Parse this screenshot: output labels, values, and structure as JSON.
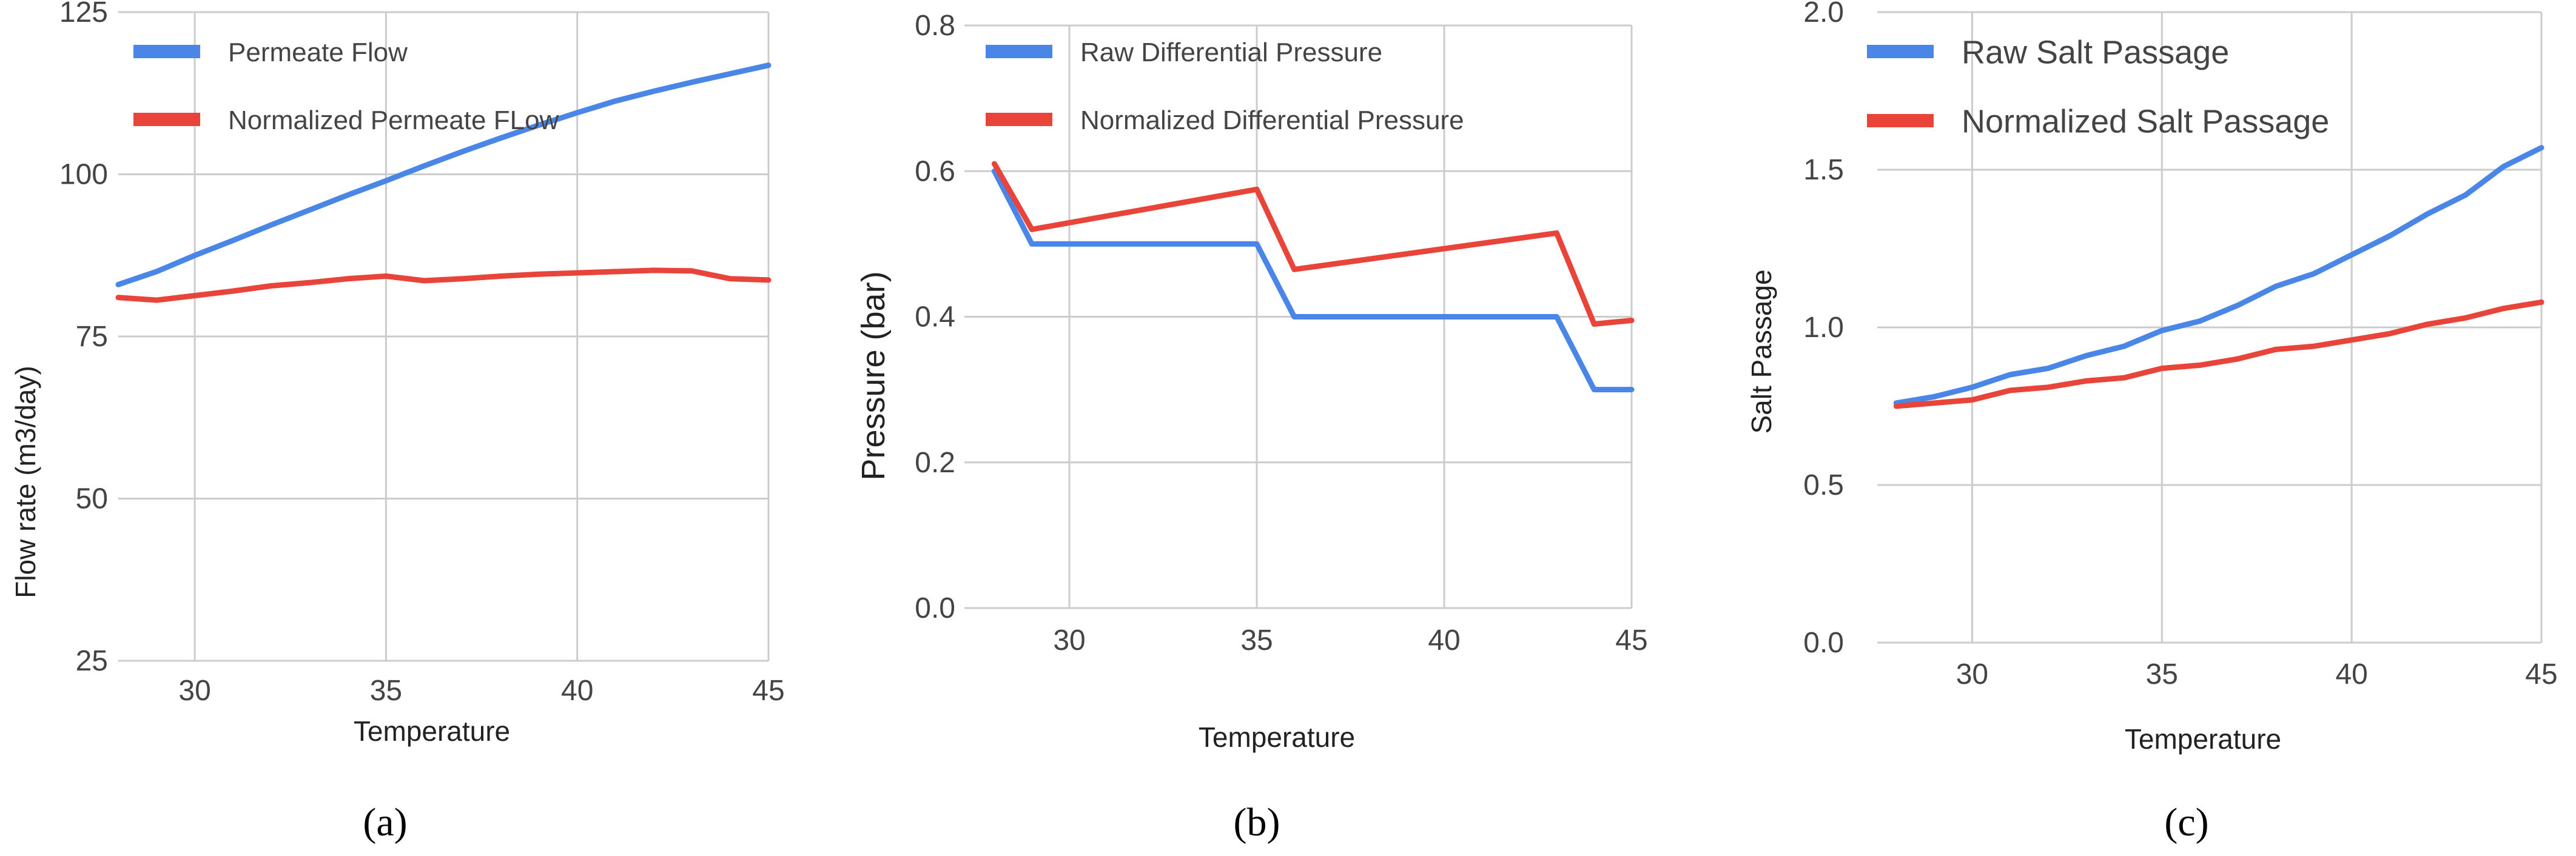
{
  "chart_data": [
    {
      "type": "line",
      "panel_label": "(a)",
      "xlabel": "Temperature",
      "ylabel": "Flow rate (m3/day)",
      "xlim": [
        28,
        45
      ],
      "ylim": [
        25,
        125
      ],
      "xticks": [
        30,
        35,
        40,
        45
      ],
      "yticks": [
        25,
        50,
        75,
        100,
        125
      ],
      "ytick_labels": [
        "25",
        "50",
        "75",
        "100",
        "125"
      ],
      "grid": true,
      "legend_position": "top-left",
      "series": [
        {
          "name": "Permeate Flow",
          "color": "#4a86e8",
          "x": [
            28,
            29,
            30,
            31,
            32,
            33,
            34,
            35,
            36,
            37,
            38,
            39,
            40,
            41,
            42,
            43,
            44,
            45
          ],
          "y": [
            83,
            85,
            87.5,
            89.8,
            92.2,
            94.5,
            96.8,
            99,
            101.3,
            103.5,
            105.6,
            107.6,
            109.5,
            111.3,
            112.8,
            114.2,
            115.5,
            116.8
          ]
        },
        {
          "name": "Normalized Permeate FLow",
          "color": "#e8443a",
          "x": [
            28,
            29,
            30,
            31,
            32,
            33,
            34,
            35,
            36,
            37,
            38,
            39,
            40,
            41,
            42,
            43,
            44,
            45
          ],
          "y": [
            81,
            80.6,
            81.3,
            82,
            82.8,
            83.3,
            83.9,
            84.3,
            83.6,
            83.9,
            84.3,
            84.6,
            84.8,
            85,
            85.2,
            85.1,
            83.9,
            83.7
          ]
        }
      ]
    },
    {
      "type": "line",
      "panel_label": "(b)",
      "xlabel": "Temperature",
      "ylabel": "Pressure (bar)",
      "xlim": [
        27.2,
        45
      ],
      "ylim": [
        0,
        0.8
      ],
      "xticks": [
        30,
        35,
        40,
        45
      ],
      "yticks": [
        0,
        0.2,
        0.4,
        0.6,
        0.8
      ],
      "ytick_labels": [
        "0.0",
        "0.2",
        "0.4",
        "0.6",
        "0.8"
      ],
      "grid": true,
      "legend_position": "top-left",
      "series": [
        {
          "name": "Raw Differential Pressure",
          "color": "#4a86e8",
          "x": [
            28,
            29,
            35,
            36,
            43,
            44,
            45
          ],
          "y": [
            0.6,
            0.5,
            0.5,
            0.4,
            0.4,
            0.3,
            0.3
          ]
        },
        {
          "name": "Normalized Differential Pressure",
          "color": "#e8443a",
          "x": [
            28,
            29,
            35,
            36,
            43,
            44,
            45
          ],
          "y": [
            0.61,
            0.52,
            0.575,
            0.465,
            0.515,
            0.39,
            0.395
          ]
        }
      ]
    },
    {
      "type": "line",
      "panel_label": "(c)",
      "xlabel": "Temperature",
      "ylabel": "Salt Passage",
      "xlim": [
        27.5,
        45
      ],
      "ylim": [
        0,
        2.0
      ],
      "xticks": [
        30,
        35,
        40,
        45
      ],
      "yticks": [
        0,
        0.5,
        1.0,
        1.5,
        2.0
      ],
      "ytick_labels": [
        "0.0",
        "0.5",
        "1.0",
        "1.5",
        "2.0"
      ],
      "grid": true,
      "legend_position": "top-left",
      "series": [
        {
          "name": "Raw Salt Passage",
          "color": "#4a86e8",
          "x": [
            28,
            29,
            30,
            31,
            32,
            33,
            34,
            35,
            36,
            37,
            38,
            39,
            40,
            41,
            42,
            43,
            44,
            45
          ],
          "y": [
            0.76,
            0.78,
            0.81,
            0.85,
            0.87,
            0.91,
            0.94,
            0.99,
            1.02,
            1.07,
            1.13,
            1.17,
            1.23,
            1.29,
            1.36,
            1.42,
            1.51,
            1.57
          ]
        },
        {
          "name": "Normalized Salt Passage",
          "color": "#e8443a",
          "x": [
            28,
            29,
            30,
            31,
            32,
            33,
            34,
            35,
            36,
            37,
            38,
            39,
            40,
            41,
            42,
            43,
            44,
            45
          ],
          "y": [
            0.75,
            0.76,
            0.77,
            0.8,
            0.81,
            0.83,
            0.84,
            0.87,
            0.88,
            0.9,
            0.93,
            0.94,
            0.96,
            0.98,
            1.01,
            1.03,
            1.06,
            1.08
          ]
        }
      ]
    }
  ]
}
